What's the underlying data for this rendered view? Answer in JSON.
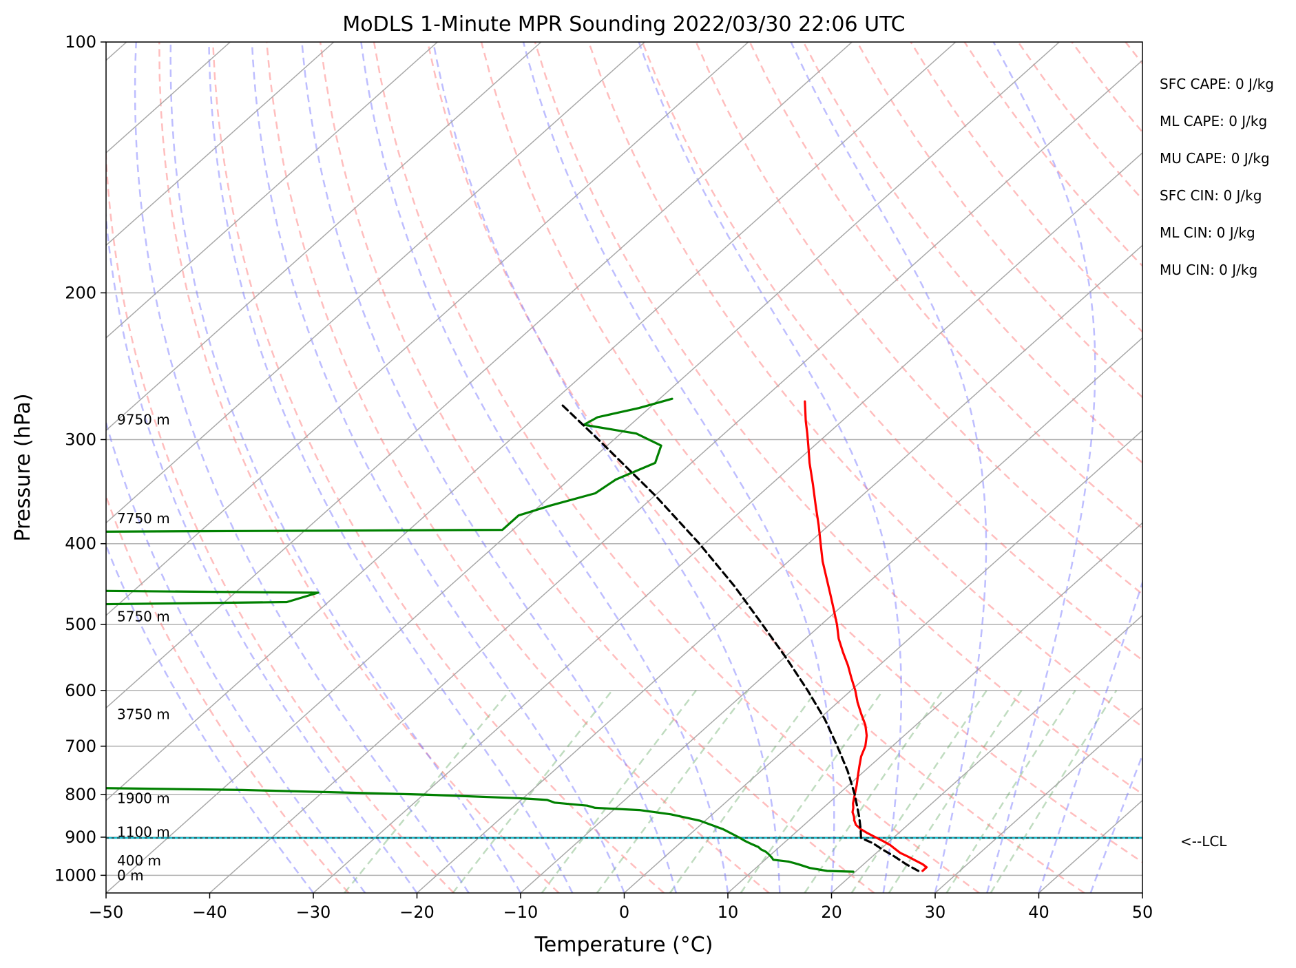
{
  "chart_data": {
    "type": "skew-t",
    "title": "MoDLS 1-Minute MPR Sounding 2022/03/30 22:06 UTC",
    "xlabel": "Temperature (°C)",
    "ylabel": "Pressure (hPa)",
    "xlim": [
      -50,
      50
    ],
    "ylim": [
      1050,
      100
    ],
    "x_ticks": [
      -50,
      -40,
      -30,
      -20,
      -10,
      0,
      10,
      20,
      30,
      40,
      50
    ],
    "x_tick_labels": [
      "−50",
      "−40",
      "−30",
      "−20",
      "−10",
      "0",
      "10",
      "20",
      "30",
      "40",
      "50"
    ],
    "y_ticks": [
      100,
      200,
      300,
      400,
      500,
      600,
      700,
      800,
      900,
      1000
    ],
    "y_tick_labels": [
      "100",
      "200",
      "300",
      "400",
      "500",
      "600",
      "700",
      "800",
      "900",
      "1000"
    ],
    "grid": true,
    "y_scale": "log",
    "height_labels": [
      {
        "text": "0 m",
        "p": 1000
      },
      {
        "text": "400 m",
        "p": 960
      },
      {
        "text": "1100 m",
        "p": 887
      },
      {
        "text": "1900 m",
        "p": 808
      },
      {
        "text": "3750 m",
        "p": 641
      },
      {
        "text": "5750 m",
        "p": 489
      },
      {
        "text": "7750 m",
        "p": 373
      },
      {
        "text": "9750 m",
        "p": 284
      }
    ],
    "parameters": [
      "SFC CAPE: 0 J/kg",
      "ML CAPE: 0 J/kg",
      "MU CAPE: 0 J/kg",
      "SFC CIN: 0 J/kg",
      "ML CIN: 0 J/kg",
      "MU CIN: 0 J/kg"
    ],
    "lcl": {
      "text": "<--LCL",
      "p": 902
    },
    "series": [
      {
        "kind": "temperature",
        "color": "#ff0000",
        "points": [
          [
            988,
            26.4
          ],
          [
            978,
            26.4
          ],
          [
            970,
            25.7
          ],
          [
            960,
            24.6
          ],
          [
            950,
            23.5
          ],
          [
            940,
            22.3
          ],
          [
            930,
            21.4
          ],
          [
            920,
            20.5
          ],
          [
            910,
            19.4
          ],
          [
            900,
            18.2
          ],
          [
            890,
            17.0
          ],
          [
            880,
            15.9
          ],
          [
            870,
            15.0
          ],
          [
            860,
            14.4
          ],
          [
            850,
            13.9
          ],
          [
            840,
            13.3
          ],
          [
            830,
            12.9
          ],
          [
            820,
            12.4
          ],
          [
            800,
            11.6
          ],
          [
            780,
            10.8
          ],
          [
            760,
            9.9
          ],
          [
            740,
            9.0
          ],
          [
            720,
            8.1
          ],
          [
            700,
            7.4
          ],
          [
            680,
            6.4
          ],
          [
            660,
            5.1
          ],
          [
            640,
            3.5
          ],
          [
            620,
            1.9
          ],
          [
            600,
            0.4
          ],
          [
            580,
            -1.3
          ],
          [
            560,
            -3.0
          ],
          [
            540,
            -4.9
          ],
          [
            520,
            -6.8
          ],
          [
            500,
            -8.5
          ],
          [
            480,
            -10.4
          ],
          [
            460,
            -12.4
          ],
          [
            440,
            -14.5
          ],
          [
            420,
            -16.7
          ],
          [
            400,
            -18.8
          ],
          [
            380,
            -21.0
          ],
          [
            360,
            -23.4
          ],
          [
            340,
            -25.9
          ],
          [
            320,
            -28.6
          ],
          [
            305,
            -30.6
          ],
          [
            295,
            -32.0
          ],
          [
            285,
            -33.5
          ],
          [
            270,
            -35.7
          ]
        ]
      },
      {
        "kind": "dewpoint",
        "color": "#008000",
        "points": [
          [
            990,
            19.8
          ],
          [
            988,
            17.2
          ],
          [
            980,
            15.2
          ],
          [
            970,
            13.7
          ],
          [
            963,
            12.5
          ],
          [
            958,
            10.8
          ],
          [
            952,
            10.4
          ],
          [
            944,
            9.8
          ],
          [
            937,
            9.2
          ],
          [
            931,
            8.5
          ],
          [
            925,
            8.0
          ],
          [
            918,
            7.1
          ],
          [
            910,
            6.1
          ],
          [
            900,
            5.0
          ],
          [
            880,
            2.6
          ],
          [
            860,
            -0.5
          ],
          [
            845,
            -4.0
          ],
          [
            835,
            -7.5
          ],
          [
            830,
            -12.0
          ],
          [
            825,
            -13.0
          ],
          [
            818,
            -16.5
          ],
          [
            812,
            -17.5
          ],
          [
            808,
            -20.5
          ],
          [
            800,
            -30.0
          ],
          [
            790,
            -48.0
          ],
          [
            782,
            -75.0
          ],
          [
            780,
            -90.0
          ],
          [
            475,
            -95.0
          ],
          [
            470,
            -64.0
          ],
          [
            458,
            -62.0
          ],
          [
            455,
            -90.0
          ],
          [
            387,
            -90.0
          ],
          [
            385,
            -51.0
          ],
          [
            370,
            -51.0
          ],
          [
            360,
            -49.0
          ],
          [
            348,
            -46.0
          ],
          [
            335,
            -45.5
          ],
          [
            320,
            -43.5
          ],
          [
            305,
            -44.8
          ],
          [
            295,
            -48.5
          ],
          [
            288,
            -54.5
          ],
          [
            282,
            -54.0
          ],
          [
            275,
            -51.0
          ],
          [
            268,
            -48.8
          ]
        ]
      },
      {
        "kind": "parcel",
        "color": "#000000",
        "points": [
          [
            988,
            26.0
          ],
          [
            970,
            24.1
          ],
          [
            950,
            22.2
          ],
          [
            930,
            20.1
          ],
          [
            915,
            18.6
          ],
          [
            902,
            16.9
          ],
          [
            880,
            15.9
          ],
          [
            850,
            14.4
          ],
          [
            800,
            11.6
          ],
          [
            750,
            8.4
          ],
          [
            700,
            4.7
          ],
          [
            650,
            0.6
          ],
          [
            600,
            -4.2
          ],
          [
            550,
            -9.6
          ],
          [
            500,
            -15.7
          ],
          [
            450,
            -22.5
          ],
          [
            400,
            -30.5
          ],
          [
            350,
            -40.0
          ],
          [
            300,
            -51.5
          ],
          [
            271,
            -59.2
          ]
        ]
      }
    ]
  }
}
